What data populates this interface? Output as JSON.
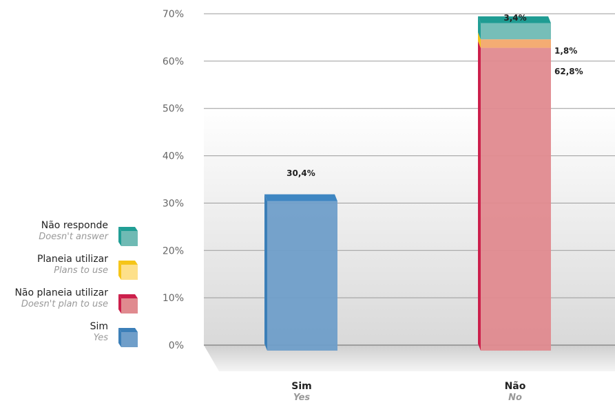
{
  "colors": {
    "sim": "#6f9ec9",
    "sim_dark": "#3c7fb8",
    "nao_planeia": "#e08a8f",
    "nao_planeia_dark": "#cc1f4b",
    "planeia": "#f3a86c",
    "planeia_dark": "#f3c31a",
    "nao_responde": "#6fbab4",
    "nao_responde_dark": "#219e95"
  },
  "legend": {
    "items": [
      {
        "label": "Não responde",
        "sublabel": "Doesn't answer",
        "color": "#6fbab4",
        "dark": "#219e95",
        "icon": "teal-cube-icon"
      },
      {
        "label": "Planeia utilizar",
        "sublabel": "Plans to use",
        "color": "#fde08a",
        "dark": "#f5c518",
        "icon": "yellow-cube-icon"
      },
      {
        "label": "Não planeia utilizar",
        "sublabel": "Doesn't plan to use",
        "color": "#e08a8f",
        "dark": "#cc1f4b",
        "icon": "red-cube-icon"
      },
      {
        "label": "Sim",
        "sublabel": "Yes",
        "color": "#6f9ec9",
        "dark": "#3c7fb8",
        "icon": "blue-cube-icon"
      }
    ]
  },
  "chart_data": {
    "type": "bar",
    "stacked": true,
    "categories": [
      "Sim",
      "Não"
    ],
    "category_sublabels": [
      "Yes",
      "No"
    ],
    "series": [
      {
        "name": "Sim",
        "values": [
          30.4,
          0
        ]
      },
      {
        "name": "Não planeia utilizar",
        "values": [
          0,
          62.8
        ]
      },
      {
        "name": "Planeia utilizar",
        "values": [
          0,
          1.8
        ]
      },
      {
        "name": "Não responde",
        "values": [
          0,
          3.4
        ]
      }
    ],
    "data_labels": [
      "30,4%",
      "62,8%",
      "1,8%",
      "3,4%"
    ],
    "y_ticks": [
      "0%",
      "10%",
      "20%",
      "30%",
      "40%",
      "50%",
      "60%",
      "70%"
    ],
    "ylim": [
      0,
      70
    ],
    "grid": true,
    "legend_position": "left"
  }
}
